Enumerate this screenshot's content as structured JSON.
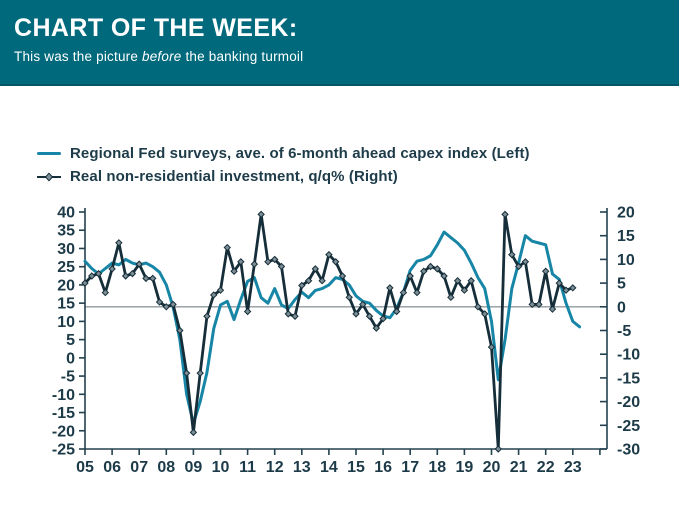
{
  "header": {
    "title": "CHART OF THE WEEK:",
    "subtitle_pre": "This was the picture ",
    "subtitle_em": "before",
    "subtitle_post": " the banking turmoil",
    "background_color": "#00697c",
    "text_color": "#ffffff"
  },
  "chart_data": {
    "type": "line",
    "frequency": "quarterly",
    "x_start_year": 2005,
    "x_tick_labels": [
      "05",
      "06",
      "07",
      "08",
      "09",
      "10",
      "11",
      "12",
      "13",
      "14",
      "15",
      "16",
      "17",
      "18",
      "19",
      "20",
      "21",
      "22",
      "23"
    ],
    "left_axis": {
      "min": -25,
      "max": 40,
      "step": 5,
      "ticks": [
        40,
        35,
        30,
        25,
        20,
        15,
        10,
        5,
        0,
        -5,
        -10,
        -15,
        -20,
        -25
      ]
    },
    "right_axis": {
      "min": -30,
      "max": 20,
      "step": 5,
      "ticks": [
        20,
        15,
        10,
        5,
        0,
        -5,
        -10,
        -15,
        -20,
        -25,
        -30
      ]
    },
    "zero_line": {
      "axis": "right",
      "value": 0,
      "color": "#8f999e"
    },
    "axis_color": "#23414e",
    "tick_label_color": "#1c3a48",
    "series": [
      {
        "name": "Regional Fed surveys, ave. of 6-month ahead capex index (Left)",
        "axis": "left",
        "color": "#1786a6",
        "marker": "none",
        "values": [
          26.5,
          24.5,
          23,
          24.5,
          26,
          25.5,
          27,
          26,
          25.5,
          26,
          25,
          23.5,
          20,
          14,
          5,
          -10,
          -18,
          -12,
          -4,
          8,
          14.5,
          15.5,
          10.5,
          16,
          21,
          22,
          16.5,
          15,
          19,
          14.5,
          13.5,
          16,
          18,
          16.5,
          18.5,
          19,
          20,
          22,
          21.5,
          20,
          17,
          15.5,
          15,
          13,
          11.5,
          11,
          13.5,
          18,
          24,
          26.5,
          27,
          28,
          31,
          34.5,
          33,
          31.5,
          29.5,
          26,
          22,
          19,
          10,
          -6,
          5,
          19,
          26,
          33.5,
          32,
          31.5,
          31,
          23,
          21.5,
          15,
          10,
          8.5
        ]
      },
      {
        "name": "Real non-residential investment, q/q% (Right)",
        "axis": "right",
        "color": "#152e39",
        "marker": "diamond",
        "marker_fill": "#7e8e96",
        "values": [
          5,
          6.5,
          7,
          3,
          8,
          13.5,
          6.5,
          7,
          9,
          6,
          6,
          1,
          0,
          0.5,
          -5,
          -14,
          -26.5,
          -14,
          -2,
          2.5,
          3.5,
          12.5,
          7.5,
          9.5,
          -1,
          9,
          19.5,
          9.5,
          10,
          8.5,
          -1.5,
          -2,
          4.5,
          5.5,
          8,
          5.5,
          11,
          9.5,
          6.5,
          2,
          -1.5,
          0.5,
          -2,
          -4.5,
          -2.5,
          4,
          -1,
          3,
          6.5,
          3,
          7.5,
          8.5,
          8,
          6.5,
          2,
          5.5,
          3.5,
          5.5,
          0,
          -1.5,
          -8.5,
          -30,
          19.5,
          11,
          8.5,
          9.5,
          0.5,
          0.5,
          7.5,
          -0.5,
          5,
          3.5,
          4
        ]
      }
    ]
  }
}
